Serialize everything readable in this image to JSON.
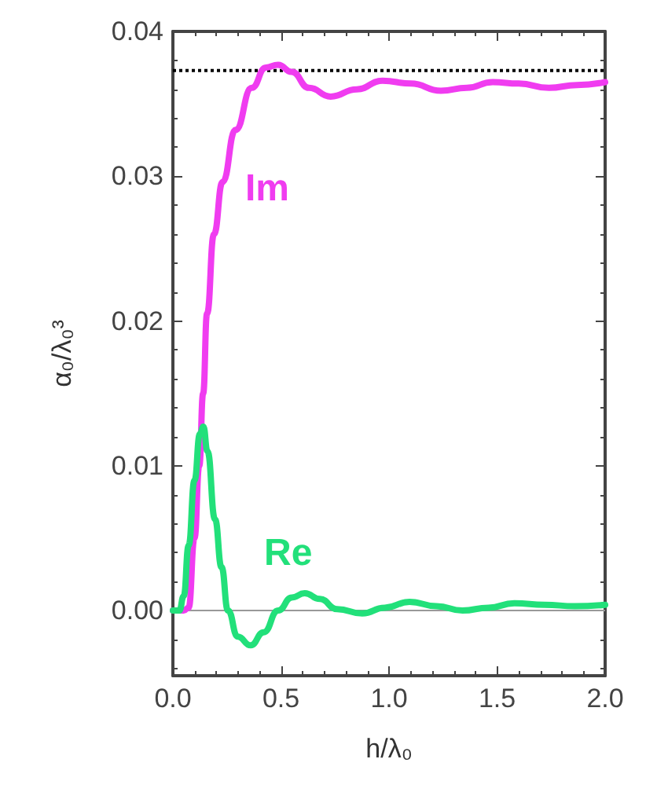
{
  "chart_data": {
    "type": "line",
    "xlabel": "h/λ₀",
    "ylabel": "α₀/λ₀³",
    "xlim": [
      0,
      2
    ],
    "ylim": [
      -0.0045,
      0.04
    ],
    "xticks": [
      {
        "value": 0,
        "label": "0.0"
      },
      {
        "value": 0.5,
        "label": "0.5"
      },
      {
        "value": 1,
        "label": "1.0"
      },
      {
        "value": 1.5,
        "label": "1.5"
      },
      {
        "value": 2,
        "label": "2.0"
      }
    ],
    "yticks": [
      {
        "value": 0,
        "label": "0.00"
      },
      {
        "value": 0.01,
        "label": "0.01"
      },
      {
        "value": 0.02,
        "label": "0.02"
      },
      {
        "value": 0.03,
        "label": "0.03"
      },
      {
        "value": 0.04,
        "label": "0.04"
      }
    ],
    "grid": false,
    "legend": false,
    "marker": "none",
    "line_style": "solid",
    "ref_lines": [
      {
        "axis": "y",
        "value": 0.0373,
        "color": "#000000",
        "line_style": "dotted"
      },
      {
        "axis": "y",
        "value": 0,
        "color": "#999999",
        "line_style": "solid"
      }
    ],
    "series": [
      {
        "name": "Im",
        "color": "#f03cf0",
        "x": [
          0,
          0.05,
          0.073,
          0.1,
          0.122,
          0.14,
          0.158,
          0.19,
          0.23,
          0.29,
          0.365,
          0.43,
          0.487,
          0.55,
          0.63,
          0.73,
          0.85,
          0.97,
          1.1,
          1.24,
          1.36,
          1.48,
          1.6,
          1.74,
          1.87,
          2.0
        ],
        "values": [
          0,
          0,
          0.0002,
          0.005,
          0.01,
          0.015,
          0.0205,
          0.026,
          0.0296,
          0.0332,
          0.0361,
          0.0375,
          0.0377,
          0.0372,
          0.0361,
          0.0355,
          0.036,
          0.0366,
          0.0364,
          0.0359,
          0.0361,
          0.0365,
          0.0364,
          0.0361,
          0.0363,
          0.0365
        ]
      },
      {
        "name": "Re",
        "color": "#22e07a",
        "x": [
          0,
          0.03,
          0.05,
          0.073,
          0.1,
          0.125,
          0.141,
          0.16,
          0.195,
          0.225,
          0.255,
          0.3,
          0.36,
          0.42,
          0.487,
          0.55,
          0.61,
          0.68,
          0.76,
          0.876,
          0.98,
          1.095,
          1.22,
          1.34,
          1.46,
          1.58,
          1.72,
          1.86,
          2.0
        ],
        "values": [
          0,
          0,
          0.001,
          0.0045,
          0.009,
          0.0122,
          0.0127,
          0.011,
          0.0063,
          0.003,
          0,
          -0.0018,
          -0.0024,
          -0.0015,
          0,
          0.0009,
          0.0012,
          0.0008,
          0.0001,
          -0.0002,
          0.0002,
          0.0006,
          0.0003,
          0,
          0.0002,
          0.0005,
          0.0004,
          0.0003,
          0.0004
        ]
      }
    ]
  }
}
